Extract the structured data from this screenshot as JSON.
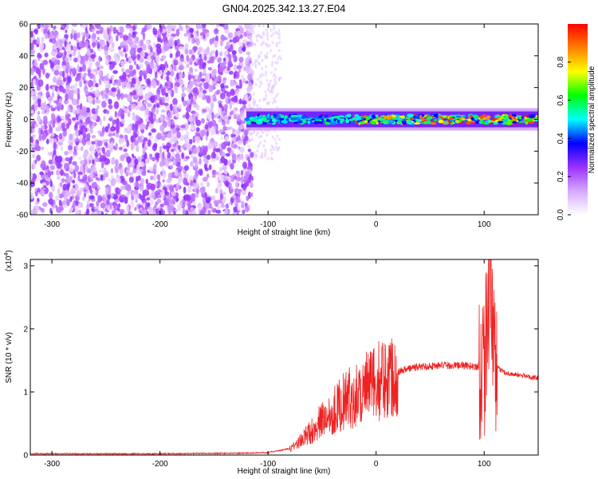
{
  "title": "GN04.2025.342.13.27.E04",
  "chart_data": [
    {
      "type": "heatmap",
      "xlabel": "Height of straight line (km)",
      "ylabel": "Frequency (Hz)",
      "xlim": [
        -320,
        150
      ],
      "ylim": [
        -60,
        60
      ],
      "xticks": [
        -300,
        -200,
        -100,
        0,
        100
      ],
      "yticks": [
        -60,
        -40,
        -20,
        0,
        20,
        40,
        60
      ],
      "colorbar": {
        "label": "Normalized spectral amplitude",
        "range": [
          0.0,
          1.0
        ],
        "ticks": [
          0.0,
          0.2,
          0.4,
          0.6,
          0.8
        ],
        "colors": [
          "#ffffff",
          "#d6a8ff",
          "#9b30ff",
          "#0000ff",
          "#00ffff",
          "#00ff00",
          "#ffff00",
          "#ff8000",
          "#ff0000"
        ]
      },
      "regions": [
        {
          "x": [
            -320,
            -115
          ],
          "y": [
            -60,
            60
          ],
          "note": "broadband purple noise"
        },
        {
          "x": [
            -120,
            150
          ],
          "y": [
            -5,
            5
          ],
          "note": "narrow band near 0 Hz, peak amplitude ~0.9-1.0"
        }
      ]
    },
    {
      "type": "line",
      "xlabel": "Height of straight line (km)",
      "ylabel": "SNR (10 * v/v)",
      "multiplier": "(x10",
      "multiplier_exp": "4",
      "multiplier_close": ")",
      "xlim": [
        -320,
        150
      ],
      "ylim": [
        0,
        3.1
      ],
      "xticks": [
        -300,
        -200,
        -100,
        0,
        100
      ],
      "yticks": [
        0,
        1,
        2,
        3
      ],
      "color": "#ee2222",
      "series": [
        {
          "x": [
            -320,
            -200,
            -120,
            -100,
            -80,
            -70,
            -60,
            -50,
            -40,
            -30,
            -20,
            -10,
            0,
            10,
            20,
            30,
            40,
            60,
            80,
            95,
            100,
            103,
            105,
            110,
            120,
            150
          ],
          "y": [
            0.02,
            0.02,
            0.03,
            0.04,
            0.1,
            0.22,
            0.38,
            0.55,
            0.7,
            0.85,
            0.95,
            1.05,
            1.15,
            1.25,
            1.32,
            1.37,
            1.4,
            1.42,
            1.42,
            1.4,
            1.5,
            2.2,
            2.9,
            1.4,
            1.3,
            1.22
          ]
        }
      ]
    }
  ]
}
